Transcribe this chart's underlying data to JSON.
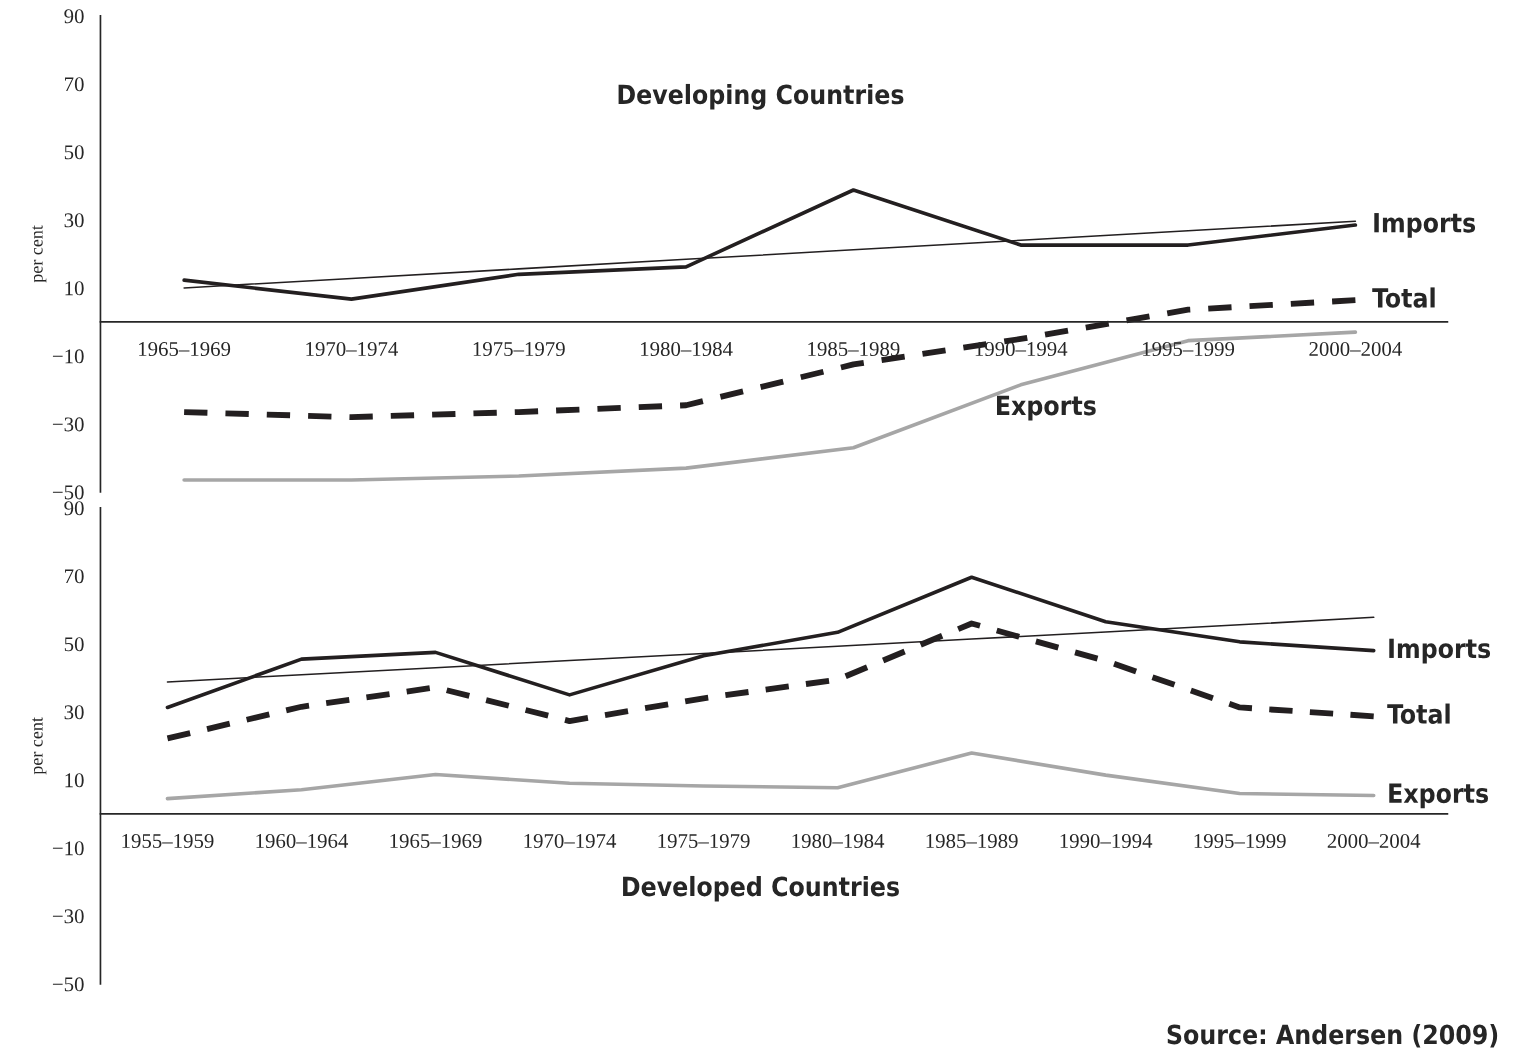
{
  "chart_data": [
    {
      "type": "line",
      "title": "Developing Countries",
      "ylabel": "per cent",
      "ylim": [
        -50,
        90
      ],
      "yticks": [
        90,
        70,
        50,
        30,
        10,
        -10,
        -30,
        -50
      ],
      "grid": false,
      "legend": false,
      "categories": [
        "1965–1969",
        "1970–1974",
        "1975–1979",
        "1980–1984",
        "1985–1989",
        "1990–1994",
        "1995–1999",
        "2000–2004"
      ],
      "series": [
        {
          "name": "Imports",
          "color": "#231f20",
          "line_style": "solid",
          "values": [
            12.3,
            6.7,
            14,
            16.2,
            38.8,
            22.6,
            22.6,
            28.5
          ]
        },
        {
          "color": "#231f20",
          "line_style": "solid",
          "values": [
            10,
            12.8,
            15.6,
            18.4,
            21.2,
            24,
            26.8,
            29.6
          ]
        },
        {
          "name": "Total",
          "color": "#231f20",
          "line_style": "dashed",
          "values": [
            -26.5,
            -28,
            -26.5,
            -24.5,
            -12.5,
            -5,
            3.6,
            6.4
          ]
        },
        {
          "name": "Exports",
          "color": "#a6a6a6",
          "line_style": "solid",
          "values": [
            -46.5,
            -46.5,
            -45.3,
            -43,
            -37,
            -18.5,
            -5.5,
            -3
          ]
        }
      ]
    },
    {
      "type": "line",
      "title": "Developed Countries",
      "ylabel": "per cent",
      "ylim": [
        -50,
        90
      ],
      "yticks": [
        90,
        70,
        50,
        30,
        10,
        -10,
        -30,
        -50
      ],
      "grid": false,
      "legend": false,
      "categories": [
        "1955–1959",
        "1960–1964",
        "1965–1969",
        "1970–1974",
        "1975–1979",
        "1980–1984",
        "1985–1989",
        "1990–1994",
        "1995–1999",
        "2000–2004"
      ],
      "series": [
        {
          "name": "Imports",
          "color": "#231f20",
          "line_style": "solid",
          "values": [
            31.3,
            45.5,
            47.5,
            35,
            46.5,
            53.4,
            69.6,
            56.5,
            50.6,
            48
          ]
        },
        {
          "color": "#231f20",
          "line_style": "solid",
          "values": [
            38.8,
            40.9,
            43,
            45.1,
            47.2,
            49.3,
            51.4,
            53.5,
            55.6,
            57.8
          ]
        },
        {
          "name": "Total",
          "color": "#231f20",
          "line_style": "dashed",
          "values": [
            22.2,
            31.5,
            37.2,
            27.3,
            34,
            39.5,
            56,
            45,
            31.3,
            28.7
          ]
        },
        {
          "name": "Exports",
          "color": "#a6a6a6",
          "line_style": "solid",
          "values": [
            4.5,
            7.1,
            11.6,
            9,
            8.2,
            7.7,
            17.9,
            11.4,
            6,
            5.4
          ]
        }
      ],
      "annotations": [
        "Source: Andersen (2009)"
      ]
    }
  ]
}
